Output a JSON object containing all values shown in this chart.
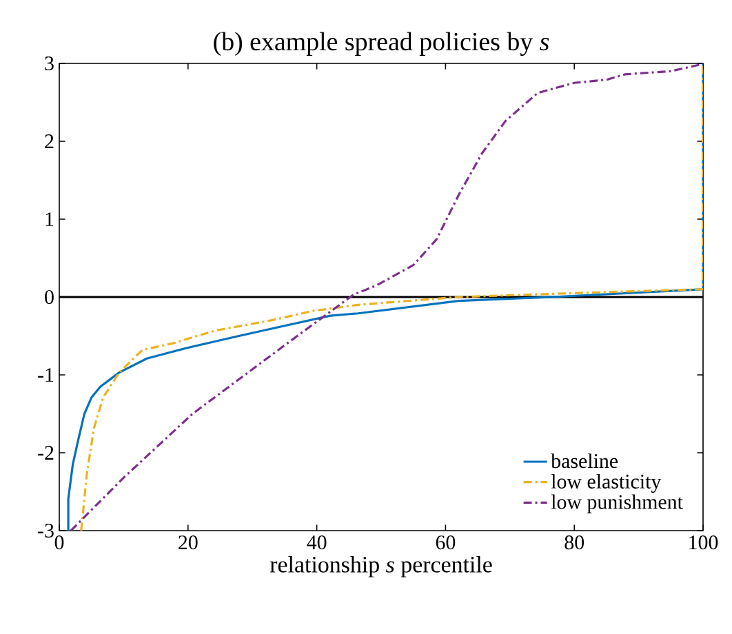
{
  "chart_data": {
    "type": "line",
    "title": "(b) example spread policies by *s*",
    "xlabel": "relationship *s* percentile",
    "xlim": [
      0,
      100
    ],
    "xticks": [
      0,
      20,
      40,
      60,
      80,
      100
    ],
    "ylim": [
      -3,
      3
    ],
    "yticks": [
      -3,
      -2,
      -1,
      0,
      1,
      2,
      3
    ],
    "legend": "bottom right",
    "grid": false,
    "marker": "none",
    "ref_lines": [
      {
        "axis": "y",
        "value": 0,
        "color": "#000000",
        "line_style": "solid"
      }
    ],
    "series": [
      {
        "name": "baseline",
        "color": "#0072bd",
        "line_style": "solid",
        "x": [
          1.4,
          1.4,
          2.1,
          2.9,
          3.9,
          5.0,
          6.4,
          9.3,
          13.6,
          20,
          27.9,
          35,
          42.1,
          46.4,
          62,
          76.5,
          100,
          100
        ],
        "values": [
          -3,
          -2.59,
          -2.15,
          -1.85,
          -1.5,
          -1.29,
          -1.15,
          -0.97,
          -0.79,
          -0.65,
          -0.5,
          -0.37,
          -0.24,
          -0.21,
          -0.05,
          0,
          0.1,
          3
        ]
      },
      {
        "name": "low elasticity",
        "color": "#edb120",
        "line_style": "dashdot",
        "x": [
          3.4,
          4.3,
          5.4,
          6.8,
          9.3,
          12.9,
          17.9,
          21.4,
          24.3,
          32.9,
          39.3,
          46.4,
          62,
          83.5,
          100,
          100
        ],
        "values": [
          -3,
          -2.26,
          -1.68,
          -1.29,
          -0.97,
          -0.68,
          -0.59,
          -0.5,
          -0.43,
          -0.3,
          -0.18,
          -0.1,
          0,
          0.06,
          0.1,
          3
        ]
      },
      {
        "name": "low punishment",
        "color": "#7e2f8e",
        "line_style": "dashdot",
        "x": [
          1.8,
          10,
          20.7,
          35,
          45.7,
          49.3,
          55,
          58.6,
          62.1,
          65.7,
          69.3,
          74.3,
          80,
          85,
          87.9,
          95,
          99.3,
          100
        ],
        "values": [
          -3,
          -2.32,
          -1.5,
          -0.62,
          0.03,
          0.15,
          0.41,
          0.74,
          1.32,
          1.85,
          2.26,
          2.62,
          2.75,
          2.79,
          2.86,
          2.9,
          2.98,
          3
        ]
      }
    ]
  }
}
